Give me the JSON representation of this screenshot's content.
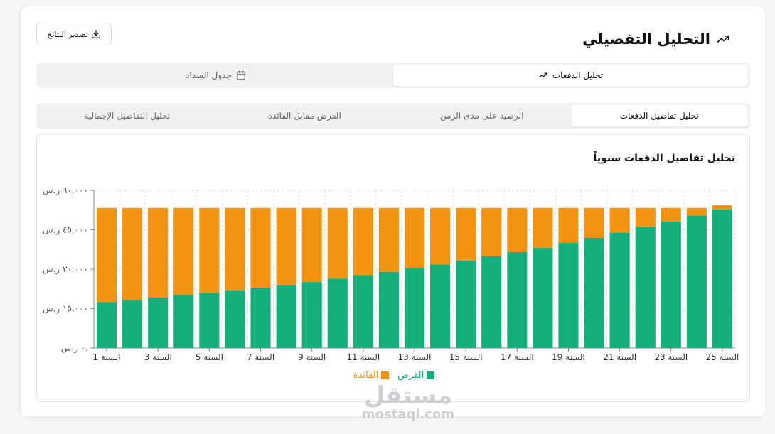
{
  "header": {
    "title": "التحليل التفصيلي",
    "export_label": "تصدير النتائج"
  },
  "main_tabs": [
    {
      "label": "تحليل الدفعات",
      "active": true
    },
    {
      "label": "جدول السداد",
      "active": false
    }
  ],
  "sub_tabs": [
    {
      "label": "تحليل تفاصيل الدفعات",
      "active": true
    },
    {
      "label": "الرصيد على مدى الزمن",
      "active": false
    },
    {
      "label": "القرض مقابل الفائدة",
      "active": false
    },
    {
      "label": "تحليل التفاصيل الإجمالية",
      "active": false
    }
  ],
  "watermark": {
    "ar": "مستقل",
    "en": "mostaql.com"
  },
  "chart_data": {
    "type": "bar",
    "stacked": true,
    "title": "تحليل تفاصيل الدفعات سنوياً",
    "categories": [
      "السنة 1",
      "السنة 2",
      "السنة 3",
      "السنة 4",
      "السنة 5",
      "السنة 6",
      "السنة 7",
      "السنة 8",
      "السنة 9",
      "السنة 10",
      "السنة 11",
      "السنة 12",
      "السنة 13",
      "السنة 14",
      "السنة 15",
      "السنة 16",
      "السنة 17",
      "السنة 18",
      "السنة 19",
      "السنة 20",
      "السنة 21",
      "السنة 22",
      "السنة 23",
      "السنة 24",
      "السنة 25"
    ],
    "x_tick_labels": [
      "السنة 1",
      "السنة 3",
      "السنة 5",
      "السنة 7",
      "السنة 9",
      "السنة 11",
      "السنة 13",
      "السنة 15",
      "السنة 17",
      "السنة 19",
      "السنة 21",
      "السنة 23",
      "السنة 25"
    ],
    "y_tick_labels": [
      "٠ ر.س.",
      "١٥,٠٠٠ ر.س",
      "٣٠,٠٠٠ ر.س",
      "٤٥,٠٠٠ ر.س",
      "٦٠,٠٠٠ ر.س"
    ],
    "ylim": [
      0,
      60000
    ],
    "series": [
      {
        "name": "القرض",
        "color": "#13b07b",
        "values": [
          17500,
          18300,
          19200,
          20100,
          21000,
          22000,
          23000,
          24100,
          25200,
          26400,
          27700,
          29000,
          30400,
          31800,
          33300,
          34900,
          36500,
          38200,
          40000,
          41900,
          43900,
          46000,
          48100,
          50400,
          52800
        ]
      },
      {
        "name": "الفائدة",
        "color": "#f39312",
        "values": [
          35800,
          35000,
          34100,
          33200,
          32300,
          31300,
          30300,
          29200,
          28100,
          26900,
          25600,
          24300,
          22900,
          21500,
          20000,
          18400,
          16800,
          15100,
          13300,
          11400,
          9400,
          7300,
          5200,
          2900,
          1500
        ]
      }
    ],
    "grid": true,
    "legend": "bottom"
  }
}
